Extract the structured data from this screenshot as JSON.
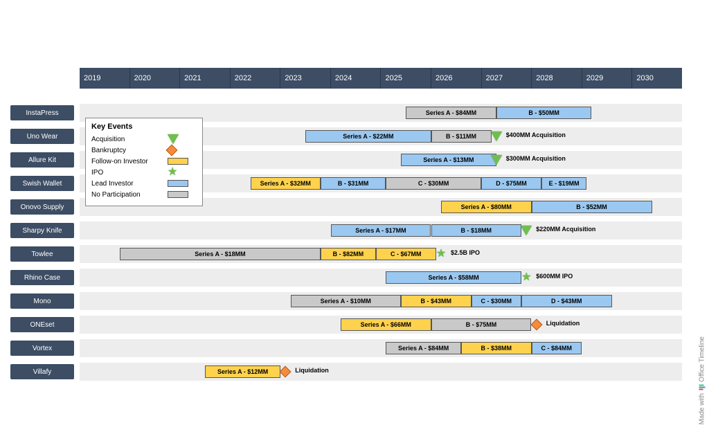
{
  "timeline": {
    "start": 2019,
    "end": 2031,
    "years": [
      2019,
      2020,
      2021,
      2022,
      2023,
      2024,
      2025,
      2026,
      2027,
      2028,
      2029,
      2030
    ],
    "axis_bg": "#3c4d64",
    "axis_text": "#ffffff",
    "track_bg": "#ededed",
    "colors": {
      "lead": "#9bc8f0",
      "follow": "#ffd24d",
      "none": "#c9c9c9",
      "acq": "#6fbf4d",
      "ipo": "#6fbf4d",
      "bankrupt": "#f58b3c"
    }
  },
  "legend": {
    "title": "Key Events",
    "items": [
      {
        "label": "Acquisition",
        "type": "shape",
        "shape": "tri"
      },
      {
        "label": "Bankruptcy",
        "type": "shape",
        "shape": "diamond"
      },
      {
        "label": "Follow-on Investor",
        "type": "swatch",
        "colorKey": "follow"
      },
      {
        "label": "IPO",
        "type": "shape",
        "shape": "star"
      },
      {
        "label": "Lead Investor",
        "type": "swatch",
        "colorKey": "lead"
      },
      {
        "label": "No Participation",
        "type": "swatch",
        "colorKey": "none"
      }
    ]
  },
  "rows": [
    {
      "name": "InstaPress",
      "bars": [
        {
          "label": "Series A - $84MM",
          "start": 2025.5,
          "end": 2027.3,
          "colorKey": "none"
        },
        {
          "label": "B - $50MM",
          "start": 2027.3,
          "end": 2029.2,
          "colorKey": "lead"
        }
      ],
      "events": []
    },
    {
      "name": "Uno Wear",
      "bars": [
        {
          "label": "Series A - $22MM",
          "start": 2023.5,
          "end": 2026.0,
          "colorKey": "lead"
        },
        {
          "label": "B - $11MM",
          "start": 2026.0,
          "end": 2027.2,
          "colorKey": "none"
        }
      ],
      "events": [
        {
          "type": "tri",
          "at": 2027.3,
          "label": "$400MM Acquisition"
        }
      ]
    },
    {
      "name": "Allure Kit",
      "bars": [
        {
          "label": "Series A - $13MM",
          "start": 2025.4,
          "end": 2027.3,
          "colorKey": "lead"
        }
      ],
      "events": [
        {
          "type": "tri",
          "at": 2027.3,
          "label": "$300MM Acquisition"
        }
      ]
    },
    {
      "name": "Swish Wallet",
      "bars": [
        {
          "label": "Series A - $32MM",
          "start": 2022.4,
          "end": 2023.8,
          "colorKey": "follow"
        },
        {
          "label": "B - $31MM",
          "start": 2023.8,
          "end": 2025.1,
          "colorKey": "lead"
        },
        {
          "label": "C - $30MM",
          "start": 2025.1,
          "end": 2027.0,
          "colorKey": "none"
        },
        {
          "label": "D - $75MM",
          "start": 2027.0,
          "end": 2028.2,
          "colorKey": "lead"
        },
        {
          "label": "E - $19MM",
          "start": 2028.2,
          "end": 2029.1,
          "colorKey": "lead"
        }
      ],
      "events": []
    },
    {
      "name": "Onovo Supply",
      "bars": [
        {
          "label": "Series A - $80MM",
          "start": 2026.2,
          "end": 2028.0,
          "colorKey": "follow"
        },
        {
          "label": "B - $52MM",
          "start": 2028.0,
          "end": 2030.4,
          "colorKey": "lead"
        }
      ],
      "events": []
    },
    {
      "name": "Sharpy Knife",
      "bars": [
        {
          "label": "Series A - $17MM",
          "start": 2024.0,
          "end": 2026.0,
          "colorKey": "lead"
        },
        {
          "label": "B - $18MM",
          "start": 2026.0,
          "end": 2027.8,
          "colorKey": "lead"
        }
      ],
      "events": [
        {
          "type": "tri",
          "at": 2027.9,
          "label": "$220MM Acquisition"
        }
      ]
    },
    {
      "name": "Towlee",
      "bars": [
        {
          "label": "Series A - $18MM",
          "start": 2019.8,
          "end": 2023.8,
          "colorKey": "none"
        },
        {
          "label": "B - $82MM",
          "start": 2023.8,
          "end": 2024.9,
          "colorKey": "follow"
        },
        {
          "label": "C - $67MM",
          "start": 2024.9,
          "end": 2026.1,
          "colorKey": "follow"
        }
      ],
      "events": [
        {
          "type": "star",
          "at": 2026.2,
          "label": "$2.5B IPO"
        }
      ]
    },
    {
      "name": "Rhino Case",
      "bars": [
        {
          "label": "Series A - $58MM",
          "start": 2025.1,
          "end": 2027.8,
          "colorKey": "lead"
        }
      ],
      "events": [
        {
          "type": "star",
          "at": 2027.9,
          "label": "$600MM IPO"
        }
      ]
    },
    {
      "name": "Mono",
      "bars": [
        {
          "label": "Series A - $10MM",
          "start": 2023.2,
          "end": 2025.4,
          "colorKey": "none"
        },
        {
          "label": "B - $43MM",
          "start": 2025.4,
          "end": 2026.8,
          "colorKey": "follow"
        },
        {
          "label": "C - $30MM",
          "start": 2026.8,
          "end": 2027.8,
          "colorKey": "lead"
        },
        {
          "label": "D - $43MM",
          "start": 2027.8,
          "end": 2029.6,
          "colorKey": "lead"
        }
      ],
      "events": []
    },
    {
      "name": "ONEset",
      "bars": [
        {
          "label": "Series A - $66MM",
          "start": 2024.2,
          "end": 2026.0,
          "colorKey": "follow"
        },
        {
          "label": "B - $75MM",
          "start": 2026.0,
          "end": 2028.0,
          "colorKey": "none"
        }
      ],
      "events": [
        {
          "type": "diamond",
          "at": 2028.1,
          "label": "Liquidation"
        }
      ]
    },
    {
      "name": "Vortex",
      "bars": [
        {
          "label": "Series A - $84MM",
          "start": 2025.1,
          "end": 2026.6,
          "colorKey": "none"
        },
        {
          "label": "B - $38MM",
          "start": 2026.6,
          "end": 2028.0,
          "colorKey": "follow"
        },
        {
          "label": "C - $84MM",
          "start": 2028.0,
          "end": 2029.0,
          "colorKey": "lead"
        }
      ],
      "events": []
    },
    {
      "name": "Villafy",
      "bars": [
        {
          "label": "Series A - $12MM",
          "start": 2021.5,
          "end": 2023.0,
          "colorKey": "follow"
        }
      ],
      "events": [
        {
          "type": "diamond",
          "at": 2023.1,
          "label": "Liquidation"
        }
      ]
    }
  ],
  "watermark": {
    "text": "Made with",
    "brand": "Office Timeline"
  }
}
